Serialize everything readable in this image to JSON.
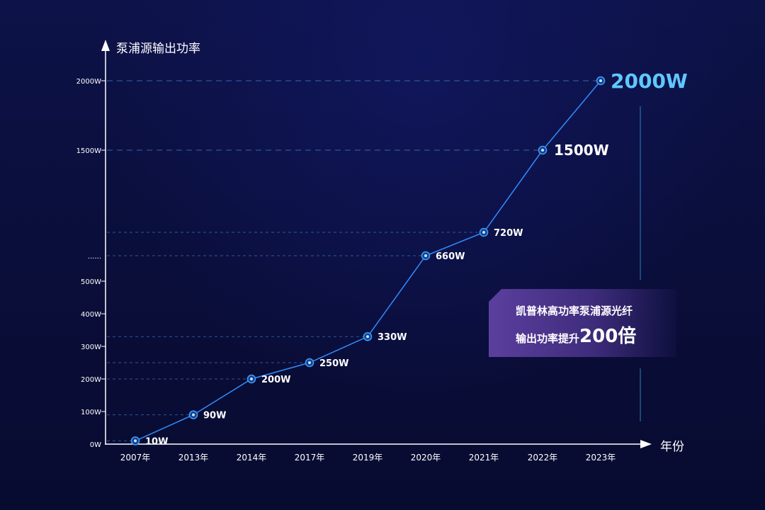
{
  "chart_data": {
    "type": "line",
    "ylabel": "泵浦源输出功率",
    "xlabel": "年份",
    "categories": [
      "2007年",
      "2013年",
      "2014年",
      "2017年",
      "2019年",
      "2020年",
      "2021年",
      "2022年",
      "2023年"
    ],
    "values": [
      10,
      90,
      200,
      250,
      330,
      660,
      720,
      1500,
      2000
    ],
    "data_labels": [
      "10W",
      "90W",
      "200W",
      "250W",
      "330W",
      "660W",
      "720W",
      "1500W",
      "2000W"
    ],
    "y_scale": "broken axis: linear 0–500W, break, then 1500W and 2000W",
    "ytick_labels": [
      "0W",
      "100W",
      "200W",
      "300W",
      "400W",
      "500W",
      "......",
      "1500W",
      "2000W"
    ],
    "grid": "dashed horizontal guide lines at each data value",
    "colors": {
      "line": "#2f8dff",
      "marker": "#3aa0ff",
      "guide": "#3a6fb5",
      "highlight": "#5fc8ff",
      "axis": "#ffffff"
    }
  },
  "callout": {
    "line1": "凯普林高功率泵浦源光纤",
    "line2_prefix": "输出功率提升",
    "line2_big": "200倍"
  }
}
